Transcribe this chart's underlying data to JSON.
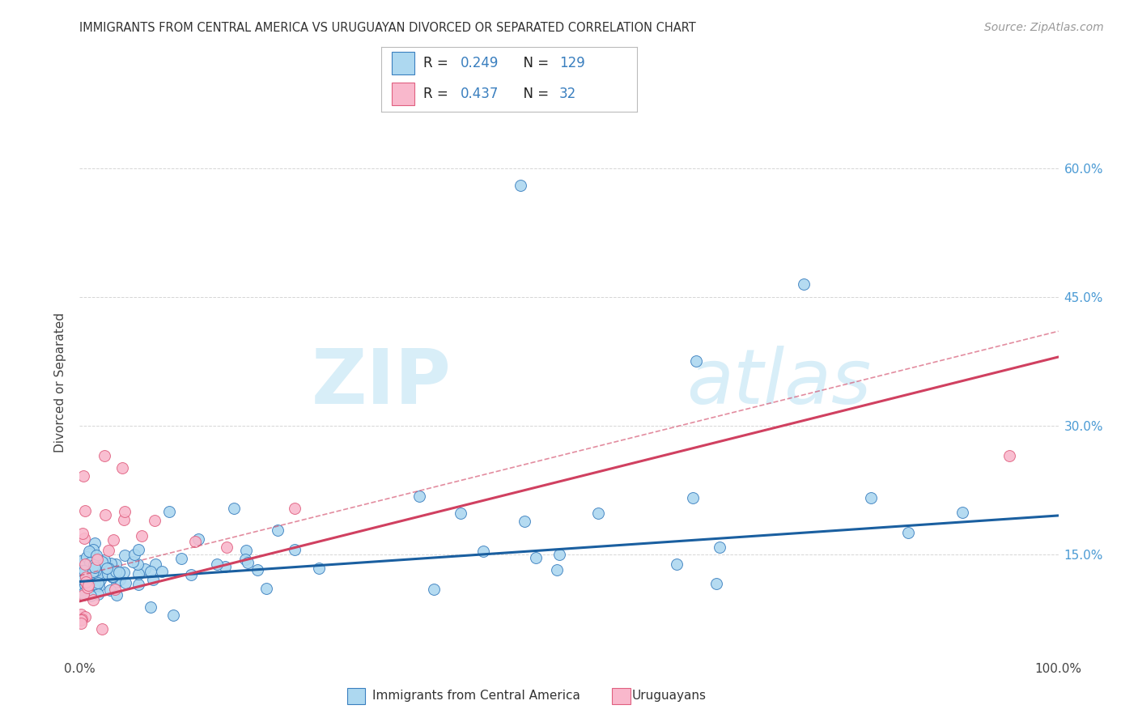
{
  "title": "IMMIGRANTS FROM CENTRAL AMERICA VS URUGUAYAN DIVORCED OR SEPARATED CORRELATION CHART",
  "source": "Source: ZipAtlas.com",
  "ylabel": "Divorced or Separated",
  "legend_label1": "Immigrants from Central America",
  "legend_label2": "Uruguayans",
  "R1": 0.249,
  "N1": 129,
  "R2": 0.437,
  "N2": 32,
  "color_blue": "#ADD8F0",
  "color_pink": "#F9B8CC",
  "line_blue": "#3A7FBF",
  "line_pink": "#E06080",
  "trend_blue": "#1A5FA0",
  "trend_pink": "#D04060",
  "xlim": [
    0.0,
    1.0
  ],
  "ylim": [
    0.03,
    0.67
  ],
  "yticks": [
    0.15,
    0.3,
    0.45,
    0.6
  ],
  "ytick_labels": [
    "15.0%",
    "30.0%",
    "45.0%",
    "60.0%"
  ],
  "xtick_labels": [
    "0.0%",
    "100.0%"
  ],
  "grid_color": "#CCCCCC",
  "background_color": "#FFFFFF",
  "watermark_zip": "ZIP",
  "watermark_atlas": "atlas",
  "watermark_color": "#D8EEF8",
  "legend_R_color": "#3A7FBF",
  "legend_N_color": "#3A7FBF"
}
